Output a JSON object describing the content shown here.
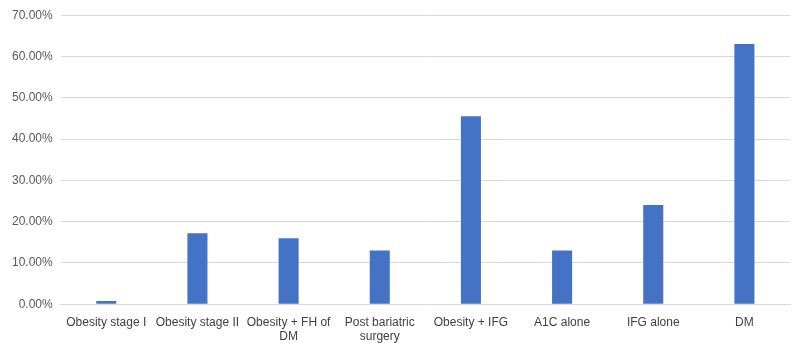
{
  "chart_data": {
    "type": "bar",
    "categories": [
      "Obesity stage I",
      "Obesity stage II",
      "Obesity + FH of DM",
      "Post bariatric surgery",
      "Obesity + IFG",
      "A1C alone",
      "IFG alone",
      "DM"
    ],
    "values": [
      0.8,
      17.2,
      16,
      13,
      45.5,
      13,
      24,
      63
    ],
    "color": "#4472c4",
    "ylim": [
      0,
      70
    ],
    "yticks": [
      {
        "value": 0,
        "label": "0.00%"
      },
      {
        "value": 10,
        "label": "10.00%"
      },
      {
        "value": 20,
        "label": "20.00%"
      },
      {
        "value": 30,
        "label": "30.00%"
      },
      {
        "value": 40,
        "label": "40.00%"
      },
      {
        "value": 50,
        "label": "50.00%"
      },
      {
        "value": 60,
        "label": "60.00%"
      },
      {
        "value": 70,
        "label": "70.00%"
      }
    ],
    "grid": true
  }
}
